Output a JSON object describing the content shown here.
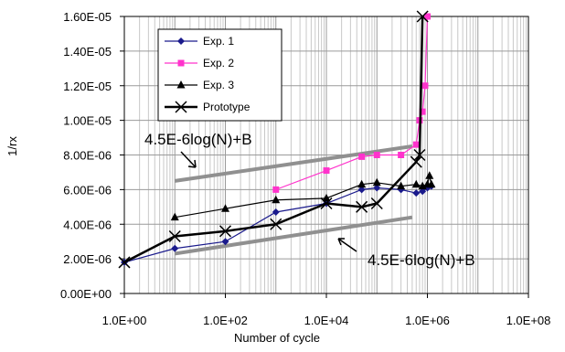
{
  "chart_data": {
    "type": "scatter",
    "xlabel": "Number of cycle",
    "ylabel": "1/rx",
    "x_scale": "log",
    "xlim": [
      1,
      100000000
    ],
    "ylim": [
      0,
      1.6e-05
    ],
    "grid": true,
    "legend_position": "top-left",
    "x_ticks": [
      {
        "value": 1,
        "label": "1.0E+00"
      },
      {
        "value": 100,
        "label": "1.0E+02"
      },
      {
        "value": 10000,
        "label": "1.0E+04"
      },
      {
        "value": 1000000,
        "label": "1.0E+06"
      },
      {
        "value": 100000000,
        "label": "1.0E+08"
      }
    ],
    "y_ticks": [
      {
        "value": 0,
        "label": "0.00E+00"
      },
      {
        "value": 2e-06,
        "label": "2.00E-06"
      },
      {
        "value": 4e-06,
        "label": "4.00E-06"
      },
      {
        "value": 6e-06,
        "label": "6.00E-06"
      },
      {
        "value": 8e-06,
        "label": "8.00E-06"
      },
      {
        "value": 1e-05,
        "label": "1.00E-05"
      },
      {
        "value": 1.2e-05,
        "label": "1.20E-05"
      },
      {
        "value": 1.4e-05,
        "label": "1.40E-05"
      },
      {
        "value": 1.6e-05,
        "label": "1.60E-05"
      }
    ],
    "series": [
      {
        "name": "Exp. 1",
        "color": "#1a1a8c",
        "marker": "diamond",
        "x": [
          1,
          10,
          100,
          1000,
          10000,
          50000,
          100000,
          300000,
          600000,
          800000,
          1000000,
          1200000
        ],
        "y": [
          1.8e-06,
          2.6e-06,
          3e-06,
          4.7e-06,
          5.2e-06,
          6e-06,
          6.1e-06,
          6e-06,
          5.8e-06,
          5.9e-06,
          6.1e-06,
          6.2e-06
        ]
      },
      {
        "name": "Exp. 2",
        "color": "#ff33cc",
        "marker": "square",
        "x": [
          1000,
          10000,
          50000,
          100000,
          300000,
          600000,
          700000,
          800000,
          900000,
          1000000
        ],
        "y": [
          6e-06,
          7.1e-06,
          7.9e-06,
          8e-06,
          8e-06,
          8.6e-06,
          1e-05,
          1.05e-05,
          1.2e-05,
          1.6e-05
        ]
      },
      {
        "name": "Exp. 3",
        "color": "#000000",
        "marker": "triangle",
        "x": [
          10,
          100,
          1000,
          10000,
          50000,
          100000,
          300000,
          600000,
          800000,
          1000000,
          1100000,
          1200000
        ],
        "y": [
          4.4e-06,
          4.9e-06,
          5.4e-06,
          5.5e-06,
          6.3e-06,
          6.4e-06,
          6.2e-06,
          6.3e-06,
          6.2e-06,
          6.3e-06,
          6.8e-06,
          6.3e-06
        ]
      },
      {
        "name": "Prototype",
        "color": "#000000",
        "marker": "x",
        "x": [
          1,
          10,
          100,
          1000,
          10000,
          50000,
          100000,
          600000,
          700000,
          800000
        ],
        "y": [
          1.8e-06,
          3.3e-06,
          3.6e-06,
          4e-06,
          5.2e-06,
          5e-06,
          5.2e-06,
          7.6e-06,
          8e-06,
          1.6e-05
        ]
      }
    ],
    "reference_lines": [
      {
        "label": "4.5E-6log(N)+B",
        "color": "#909090",
        "x": [
          10,
          500000
        ],
        "y": [
          6.5e-06,
          8.5e-06
        ]
      },
      {
        "label": "4.5E-6log(N)+B",
        "color": "#909090",
        "x": [
          10,
          500000
        ],
        "y": [
          2.3e-06,
          4.4e-06
        ]
      }
    ],
    "annotations": [
      {
        "text": "4.5E-6log(N)+B",
        "near": "upper reference line"
      },
      {
        "text": "4.5E-6log(N)+B",
        "near": "lower reference line"
      }
    ]
  }
}
